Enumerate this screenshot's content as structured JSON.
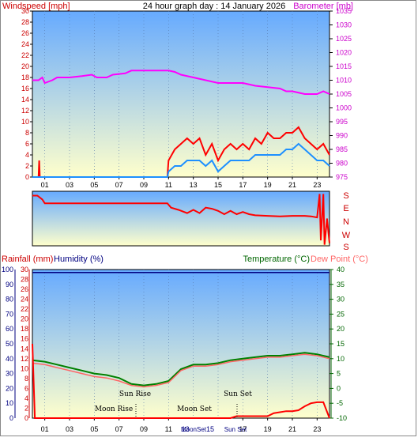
{
  "page_title": "24 hour graph day : 14 January 2026",
  "top_panel": {
    "left_label": "Windspeed [mph]",
    "right_label": "Barometer [mb]"
  },
  "bottom_panel": {
    "rainfall_label": "Rainfall (mm)",
    "humidity_label": "Humidity (%)",
    "temperature_label": "Temperature (°C)",
    "dewpoint_label": "Dew Point (°C)",
    "annotations": {
      "sun_rise": "Sun Rise",
      "sun_set": "Sun Set",
      "moon_rise": "Moon Rise",
      "moon_set": "Moon Set",
      "axis_moon_set": "MoonSet",
      "axis_sun_set": "Sun Set"
    }
  },
  "colors": {
    "wind_gust": "#ff0000",
    "wind_avg": "#1e90ff",
    "barometer": "#ff00ff",
    "direction": "#ff0000",
    "temperature": "#008000",
    "dewpoint": "#ff6666",
    "rainfall": "#ff0000",
    "humidity": "#000080",
    "sky_top": "#66aaff",
    "sky_bottom": "#ffffcc"
  },
  "chart_data": [
    {
      "type": "line",
      "title": "24 hour graph day : 14 January 2026",
      "x_ticks": [
        "01",
        "03",
        "05",
        "07",
        "09",
        "11",
        "13",
        "15",
        "17",
        "19",
        "21",
        "23"
      ],
      "xlim": [
        0,
        24
      ],
      "ylabel": "Windspeed [mph]",
      "ylim": [
        0,
        30
      ],
      "y_ticks": [
        "0",
        "2",
        "4",
        "6",
        "8",
        "10",
        "12",
        "14",
        "16",
        "18",
        "20",
        "22",
        "24",
        "26",
        "28",
        "30"
      ],
      "y2label": "Barometer [mb]",
      "y2lim": [
        975,
        1035
      ],
      "y2_ticks": [
        "975",
        "980",
        "985",
        "990",
        "995",
        "1000",
        "1005",
        "1010",
        "1015",
        "1020",
        "1025",
        "1030",
        "1035"
      ],
      "series": [
        {
          "name": "Barometer [mb]",
          "axis": "right",
          "x": [
            0,
            0.5,
            0.8,
            1.0,
            1.6,
            2.0,
            3.0,
            4.0,
            4.8,
            5.2,
            6.0,
            6.5,
            7.5,
            8.0,
            9.0,
            10.0,
            11.0,
            11.5,
            12.0,
            13.0,
            14.0,
            15.0,
            16.0,
            17.0,
            18.0,
            19.0,
            20.0,
            20.5,
            21.0,
            22.0,
            23.0,
            23.5,
            24.0
          ],
          "y": [
            1010,
            1010,
            1011,
            1009,
            1010,
            1011,
            1011,
            1011.5,
            1012,
            1011,
            1011,
            1012,
            1012.5,
            1013.5,
            1013.5,
            1013.5,
            1013.5,
            1013,
            1012,
            1011,
            1010,
            1009,
            1009,
            1009,
            1008,
            1007.5,
            1007,
            1006,
            1006,
            1005,
            1005,
            1006,
            1005
          ]
        },
        {
          "name": "Wind Gust [mph]",
          "axis": "left",
          "x": [
            0,
            0.5,
            0.55,
            0.6,
            1,
            4,
            8,
            10.9,
            11,
            11.5,
            12,
            12.5,
            13,
            13.5,
            14,
            14.5,
            15,
            15.5,
            16,
            16.5,
            17,
            17.5,
            18,
            18.5,
            19,
            19.5,
            20,
            20.5,
            21,
            21.5,
            22,
            22.5,
            23,
            23.5,
            24
          ],
          "y": [
            0,
            0,
            3,
            0,
            0,
            0,
            0,
            0,
            3,
            5,
            6,
            7,
            6,
            7,
            4,
            6,
            3,
            5,
            6,
            5,
            6,
            5,
            7,
            6,
            8,
            7,
            7,
            8,
            8,
            9,
            7,
            6,
            5,
            6,
            4
          ]
        },
        {
          "name": "Wind Average [mph]",
          "axis": "left",
          "x": [
            0,
            10.9,
            11,
            11.5,
            12,
            12.5,
            13,
            13.5,
            14,
            14.5,
            15,
            15.5,
            16,
            16.5,
            17,
            17.5,
            18,
            18.5,
            19,
            19.5,
            20,
            20.5,
            21,
            21.5,
            22,
            22.5,
            23,
            23.5,
            24
          ],
          "y": [
            0,
            0,
            1,
            2,
            2,
            3,
            3,
            3,
            2,
            3,
            1,
            2,
            3,
            3,
            3,
            3,
            4,
            4,
            4,
            4,
            4,
            5,
            5,
            6,
            5,
            4,
            3,
            3,
            2
          ]
        }
      ]
    },
    {
      "type": "line",
      "title": "",
      "y_ticks": [
        "S",
        "E",
        "N",
        "W",
        "S"
      ],
      "series": [
        {
          "name": "Wind Direction",
          "x": [
            0,
            0.4,
            0.8,
            1.0,
            3,
            6,
            9,
            10.9,
            11.2,
            11.8,
            12.5,
            13,
            13.5,
            14,
            14.5,
            15,
            15.5,
            16,
            16.5,
            17,
            17.5,
            18,
            19,
            20,
            21,
            22,
            22.5,
            23,
            23.2,
            23.3,
            23.5,
            23.6,
            23.8,
            24
          ],
          "y": [
            0.08,
            0.08,
            0.15,
            0.22,
            0.22,
            0.22,
            0.22,
            0.22,
            0.3,
            0.34,
            0.4,
            0.34,
            0.4,
            0.3,
            0.32,
            0.36,
            0.42,
            0.36,
            0.42,
            0.38,
            0.42,
            0.44,
            0.45,
            0.46,
            0.45,
            0.45,
            0.46,
            0.48,
            0.05,
            0.9,
            0.05,
            0.98,
            0.5,
            0.95
          ]
        }
      ]
    },
    {
      "type": "line",
      "title": "",
      "x_ticks": [
        "01",
        "03",
        "05",
        "07",
        "09",
        "11",
        "13",
        "15",
        "17",
        "19",
        "21",
        "23"
      ],
      "xlim": [
        0,
        24
      ],
      "rain_label": "Rainfall (mm)",
      "rain_ticks": [
        "0",
        "2",
        "4",
        "6",
        "8",
        "10",
        "12",
        "14",
        "16",
        "18",
        "20",
        "22",
        "24",
        "26",
        "28",
        "30"
      ],
      "rain_lim": [
        0,
        30
      ],
      "humidity_label": "Humidity (%)",
      "humidity_ticks": [
        "0",
        "10",
        "20",
        "30",
        "40",
        "50",
        "60",
        "70",
        "80",
        "90",
        "100"
      ],
      "humidity_lim": [
        0,
        100
      ],
      "temp_label": "Temperature (°C)",
      "temp_ticks": [
        "-10",
        "-5",
        "0",
        "5",
        "10",
        "15",
        "20",
        "25",
        "30",
        "35",
        "40"
      ],
      "temp_lim": [
        -10,
        40
      ],
      "series": [
        {
          "name": "Temperature (°C)",
          "axis": "temp",
          "x": [
            0,
            1,
            2,
            3,
            4,
            5,
            6,
            7,
            8,
            9,
            10,
            11,
            12,
            13,
            14,
            15,
            16,
            17,
            18,
            19,
            20,
            21,
            22,
            23,
            24
          ],
          "y": [
            9.5,
            9,
            8,
            7,
            6,
            5,
            4.5,
            3.5,
            1.5,
            1,
            1.5,
            2.5,
            6.5,
            8,
            8,
            8.5,
            9.5,
            10,
            10.5,
            11,
            11,
            11.5,
            12,
            11.5,
            10.5
          ]
        },
        {
          "name": "Dew Point (°C)",
          "axis": "temp",
          "x": [
            0,
            1,
            2,
            3,
            4,
            5,
            6,
            7,
            8,
            9,
            10,
            11,
            12,
            13,
            14,
            15,
            16,
            17,
            18,
            19,
            20,
            21,
            22,
            23,
            24
          ],
          "y": [
            8.5,
            8,
            7,
            6,
            5,
            4,
            3.5,
            2.5,
            1,
            0.5,
            1,
            2,
            6,
            7.5,
            7.5,
            8,
            9,
            9.5,
            10,
            10.5,
            10.5,
            11,
            11.5,
            11,
            10
          ]
        },
        {
          "name": "Humidity (%)",
          "axis": "humidity",
          "x": [
            0,
            24
          ],
          "y": [
            98,
            98
          ]
        },
        {
          "name": "Rainfall (mm)",
          "axis": "rain",
          "x": [
            0,
            0.2,
            0.3,
            16,
            16.5,
            19,
            19.5,
            20,
            20.5,
            21,
            21.5,
            22,
            22.5,
            23,
            23.5,
            24
          ],
          "y": [
            15,
            0,
            0,
            0,
            0.4,
            0.4,
            1,
            1.2,
            1.4,
            1.4,
            1.6,
            2.4,
            3,
            3.2,
            3.2,
            0
          ]
        }
      ],
      "annotations": [
        {
          "text": "Sun Rise",
          "x": 7.9
        },
        {
          "text": "Moon Rise",
          "x": 8.1
        },
        {
          "text": "Moon Set",
          "x": 16.3
        },
        {
          "text": "Sun Set",
          "x": 16.7
        }
      ]
    }
  ]
}
